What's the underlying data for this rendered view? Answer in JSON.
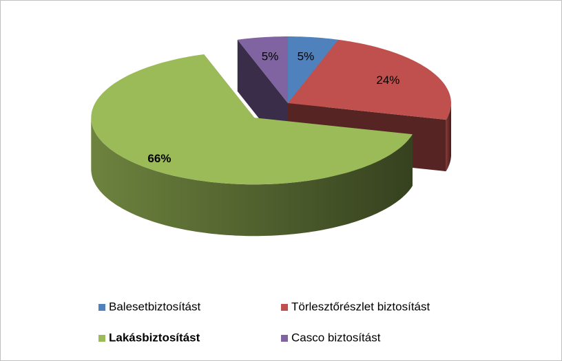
{
  "chart_data": {
    "type": "pie3d",
    "categories": [
      "Balesetbiztosítást",
      "Törlesztőrészlet biztosítást",
      "Lakásbiztosítást",
      "Casco biztosítást"
    ],
    "values": [
      5,
      24,
      66,
      5
    ],
    "value_labels": [
      "5%",
      "24%",
      "66%",
      "5%"
    ],
    "colors": [
      "#4f81bd",
      "#c0504d",
      "#9bbb59",
      "#8064a2"
    ],
    "legend": "bottom"
  }
}
